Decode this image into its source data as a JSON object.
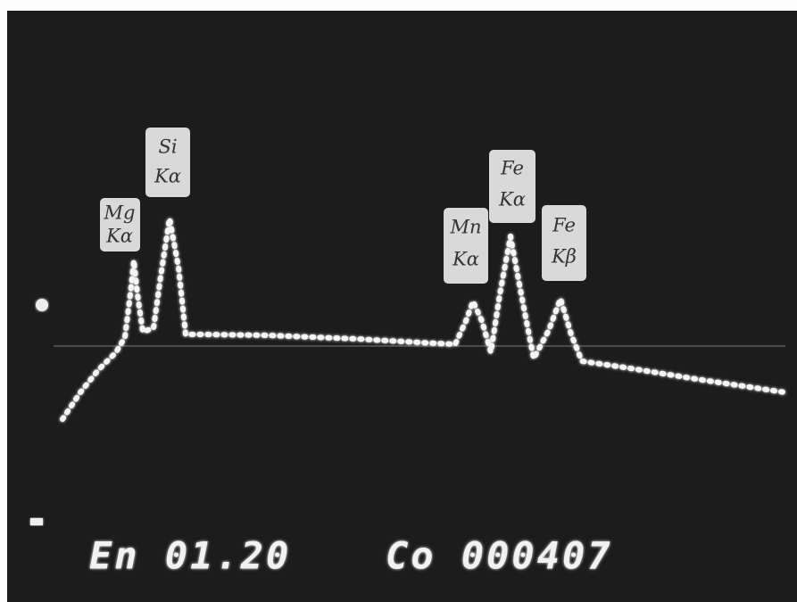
{
  "peaks": [
    {
      "element": "Mg",
      "line": "Kα"
    },
    {
      "element": "Si",
      "line": "Kα"
    },
    {
      "element": "Mn",
      "line": "Kα"
    },
    {
      "element": "Fe",
      "line": "Kα"
    },
    {
      "element": "Fe",
      "line": "Kβ"
    }
  ],
  "readout": {
    "left": "En 01.20",
    "right": "Co 000407"
  }
}
